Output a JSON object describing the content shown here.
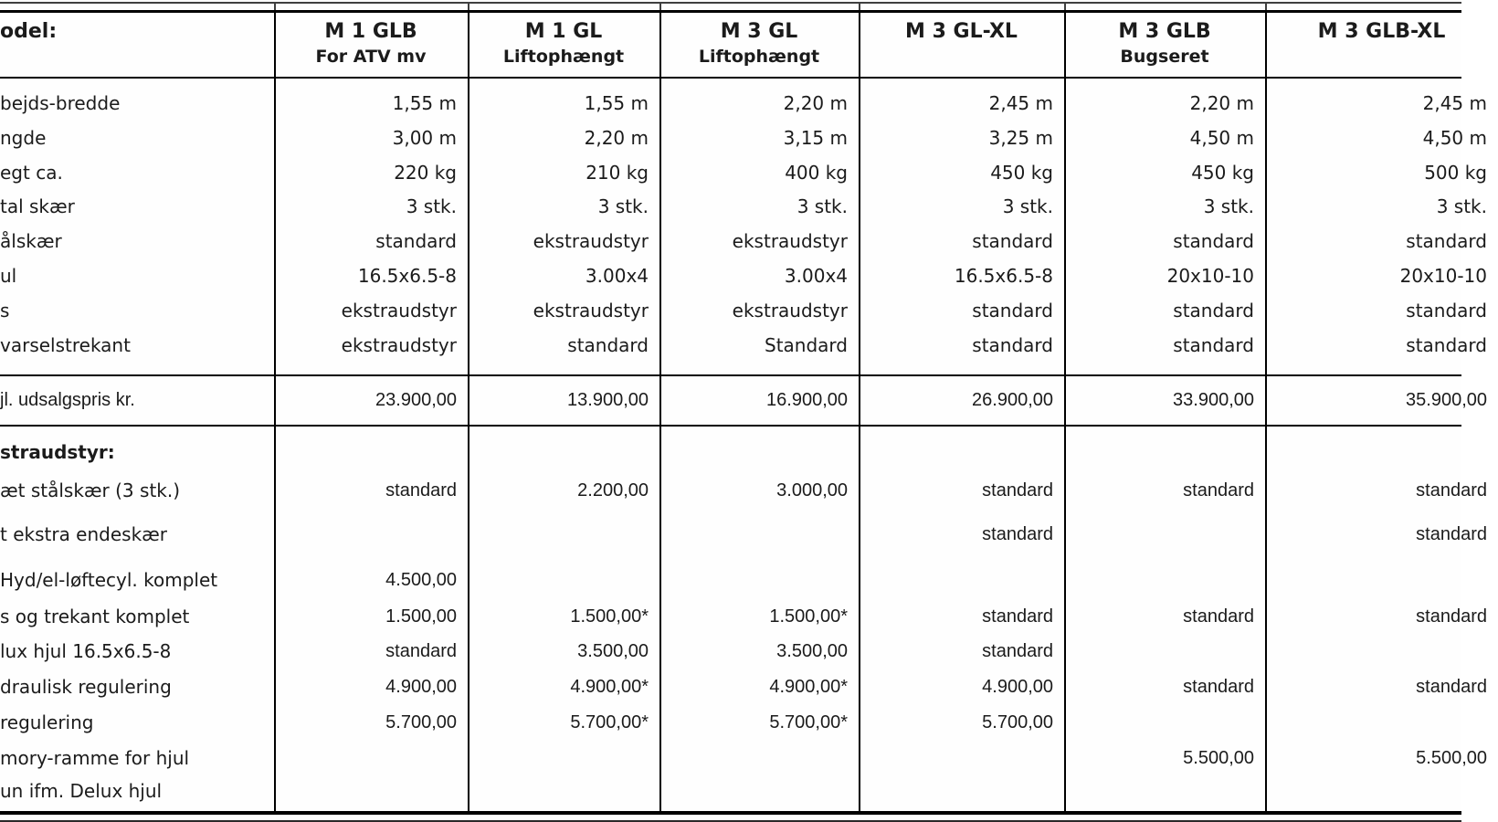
{
  "header": {
    "model_label": "odel:",
    "columns": [
      {
        "title": "M 1 GLB",
        "subtitle": "For ATV mv"
      },
      {
        "title": "M 1 GL",
        "subtitle": "Liftophængt"
      },
      {
        "title": "M 3 GL",
        "subtitle": "Liftophængt"
      },
      {
        "title": "M 3 GL-XL",
        "subtitle": ""
      },
      {
        "title": "M 3 GLB",
        "subtitle": "Bugseret"
      },
      {
        "title": "M 3 GLB-XL",
        "subtitle": ""
      }
    ]
  },
  "spec_rows": [
    {
      "label": "bejds-bredde",
      "values": [
        "1,55 m",
        "1,55 m",
        "2,20 m",
        "2,45 m",
        "2,20 m",
        "2,45 m"
      ]
    },
    {
      "label": "ngde",
      "values": [
        "3,00 m",
        "2,20 m",
        "3,15 m",
        "3,25 m",
        "4,50 m",
        "4,50 m"
      ]
    },
    {
      "label": "egt ca.",
      "values": [
        "220 kg",
        "210 kg",
        "400 kg",
        "450 kg",
        "450 kg",
        "500 kg"
      ]
    },
    {
      "label": "tal skær",
      "values": [
        "3 stk.",
        "3 stk.",
        "3 stk.",
        "3 stk.",
        "3 stk.",
        "3 stk."
      ]
    },
    {
      "label": "ålskær",
      "values": [
        "standard",
        "ekstraudstyr",
        "ekstraudstyr",
        "standard",
        "standard",
        "standard"
      ]
    },
    {
      "label": "ul",
      "values": [
        "16.5x6.5-8",
        "3.00x4",
        "3.00x4",
        "16.5x6.5-8",
        "20x10-10",
        "20x10-10"
      ]
    },
    {
      "label": "s",
      "values": [
        "ekstraudstyr",
        "ekstraudstyr",
        "ekstraudstyr",
        "standard",
        "standard",
        "standard"
      ]
    },
    {
      "label": "varselstrekant",
      "values": [
        "ekstraudstyr",
        "standard",
        "Standard",
        "standard",
        "standard",
        "standard"
      ]
    }
  ],
  "price_row": {
    "label": "jl. udsalgspris kr.",
    "values": [
      "23.900,00",
      "13.900,00",
      "16.900,00",
      "26.900,00",
      "33.900,00",
      "35.900,00"
    ]
  },
  "extras": {
    "header": "straudstyr:",
    "rows": [
      {
        "label": "æt stålskær (3 stk.)",
        "values": [
          "standard",
          "2.200,00",
          "3.000,00",
          "standard",
          "standard",
          "standard"
        ]
      },
      {
        "label": "t ekstra endeskær",
        "values": [
          "",
          "",
          "",
          "standard",
          "",
          "standard"
        ]
      },
      {
        "label": "Hyd/el-løftecyl. komplet",
        "values": [
          "4.500,00",
          "",
          "",
          "",
          "",
          ""
        ]
      },
      {
        "label": "s og trekant komplet",
        "values": [
          "1.500,00",
          "1.500,00*",
          "1.500,00*",
          "standard",
          "standard",
          "standard"
        ]
      },
      {
        "label": "lux hjul 16.5x6.5-8",
        "values": [
          "standard",
          "3.500,00",
          "3.500,00",
          "standard",
          "",
          ""
        ]
      },
      {
        "label": "draulisk regulering",
        "values": [
          "4.900,00",
          "4.900,00*",
          "4.900,00*",
          "4.900,00",
          "standard",
          "standard"
        ]
      },
      {
        "label": "regulering",
        "values": [
          "5.700,00",
          "5.700,00*",
          "5.700,00*",
          "5.700,00",
          "",
          ""
        ]
      },
      {
        "label": "mory-ramme for hjul",
        "values": [
          "",
          "",
          "",
          "",
          "5.500,00",
          "5.500,00"
        ]
      },
      {
        "label": "un ifm. Delux hjul",
        "values": [
          "",
          "",
          "",
          "",
          "",
          ""
        ]
      }
    ]
  }
}
